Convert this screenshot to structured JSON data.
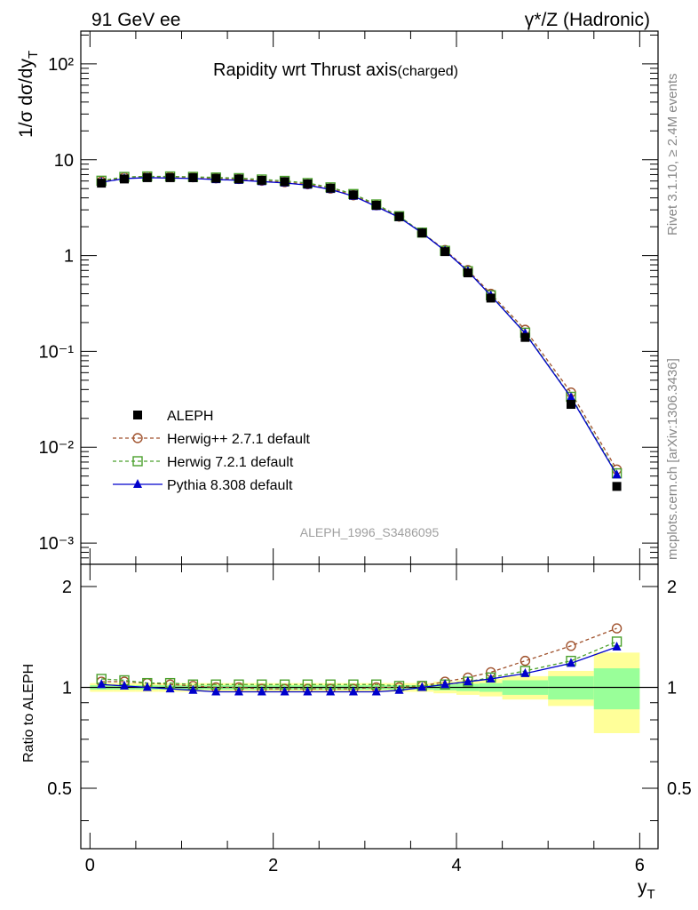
{
  "header": {
    "left": "91 GeV ee",
    "right": "γ*/Z (Hadronic)"
  },
  "side_text": {
    "rivet": "Rivet 3.1.10, ≥ 2.4M events",
    "mcplots": "mcplots.cern.ch [arXiv:1306.3436]"
  },
  "chart_data": {
    "type": "line",
    "title": "Rapidity wrt Thrust axis",
    "title_sub": "(charged)",
    "watermark": "ALEPH_1996_S3486095",
    "xlabel": "y",
    "xlabel_sub": "T",
    "ylabel": "1/σ dσ/dy",
    "ylabel_sub": "T",
    "ratio_ylabel": "Ratio to ALEPH",
    "xlim": [
      -0.1,
      6.2
    ],
    "ylim": [
      0.0006,
      220
    ],
    "yscale": "log",
    "ratio_ylim": [
      0.33,
      2.33
    ],
    "x_tick_labels": [
      "0",
      "2",
      "4",
      "6"
    ],
    "y_tick_labels": [
      "10⁻³",
      "10⁻²",
      "10⁻¹",
      "1",
      "10",
      "10²"
    ],
    "ratio_tick_labels": [
      "0.5",
      "1",
      "2"
    ],
    "x": [
      0.125,
      0.375,
      0.625,
      0.875,
      1.125,
      1.375,
      1.625,
      1.875,
      2.125,
      2.375,
      2.625,
      2.875,
      3.125,
      3.375,
      3.625,
      3.875,
      4.125,
      4.375,
      4.75,
      5.25,
      5.75
    ],
    "bin_edges": [
      0,
      0.25,
      0.5,
      0.75,
      1.0,
      1.25,
      1.5,
      1.75,
      2.0,
      2.25,
      2.5,
      2.75,
      3.0,
      3.25,
      3.5,
      3.75,
      4.0,
      4.25,
      4.5,
      5.0,
      5.5,
      6.0
    ],
    "series": [
      {
        "name": "ALEPH",
        "color": "#000000",
        "marker": "square-filled",
        "values": [
          5.7,
          6.3,
          6.5,
          6.5,
          6.5,
          6.4,
          6.3,
          6.1,
          5.9,
          5.6,
          5.05,
          4.3,
          3.35,
          2.55,
          1.72,
          1.1,
          0.66,
          0.36,
          0.14,
          0.028,
          0.0039
        ]
      },
      {
        "name": "Herwig++ 2.7.1 default",
        "color": "#a0522d",
        "marker": "circle-open",
        "line": "dashed",
        "ratio": [
          1.04,
          1.04,
          1.03,
          1.02,
          1.01,
          1.0,
          1.0,
          0.99,
          0.99,
          0.99,
          0.99,
          0.99,
          1.0,
          1.0,
          1.01,
          1.04,
          1.07,
          1.11,
          1.2,
          1.33,
          1.5
        ]
      },
      {
        "name": "Herwig 7.2.1 default",
        "color": "#4aa02c",
        "marker": "square-open",
        "line": "dashed",
        "ratio": [
          1.06,
          1.05,
          1.03,
          1.03,
          1.02,
          1.02,
          1.02,
          1.02,
          1.02,
          1.02,
          1.02,
          1.02,
          1.02,
          1.01,
          1.01,
          1.02,
          1.04,
          1.07,
          1.12,
          1.2,
          1.37
        ]
      },
      {
        "name": "Pythia 8.308 default",
        "color": "#0000cc",
        "marker": "triangle-filled",
        "line": "solid",
        "ratio": [
          1.02,
          1.01,
          1.0,
          0.99,
          0.98,
          0.97,
          0.97,
          0.97,
          0.97,
          0.97,
          0.97,
          0.97,
          0.97,
          0.98,
          1.0,
          1.02,
          1.04,
          1.06,
          1.1,
          1.18,
          1.32
        ]
      }
    ],
    "uncertainty_band": {
      "colors": {
        "total": "#ffff99",
        "stat": "#99ff99"
      },
      "outer": [
        0.03,
        0.03,
        0.03,
        0.03,
        0.03,
        0.03,
        0.03,
        0.03,
        0.03,
        0.03,
        0.03,
        0.03,
        0.03,
        0.03,
        0.03,
        0.04,
        0.05,
        0.06,
        0.08,
        0.12,
        0.27
      ],
      "inner": [
        0.015,
        0.015,
        0.015,
        0.015,
        0.015,
        0.015,
        0.015,
        0.015,
        0.015,
        0.015,
        0.015,
        0.015,
        0.015,
        0.015,
        0.015,
        0.02,
        0.025,
        0.03,
        0.05,
        0.08,
        0.14
      ]
    }
  }
}
